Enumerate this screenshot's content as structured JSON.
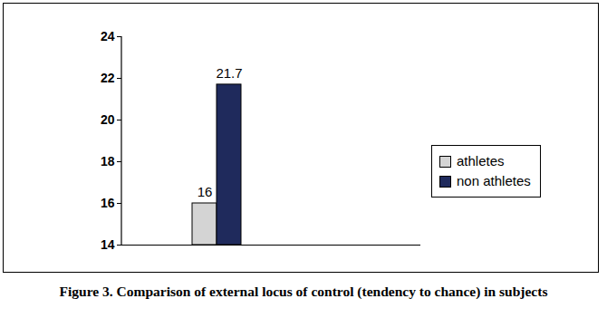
{
  "chart_data": {
    "type": "bar",
    "title": "Figure 3. Comparison of external locus of control (tendency to chance) in subjects",
    "categories": [
      null
    ],
    "series": [
      {
        "name": "athletes",
        "color": "#d4d4d4",
        "values": [
          16
        ]
      },
      {
        "name": "non athletes",
        "color": "#1f2a5c",
        "values": [
          21.7
        ]
      }
    ],
    "ylim": [
      14,
      24
    ],
    "yticks": [
      14,
      16,
      18,
      20,
      22,
      24
    ],
    "grid": false,
    "legend": "right",
    "data_labels": true,
    "tick_labels": "y"
  }
}
